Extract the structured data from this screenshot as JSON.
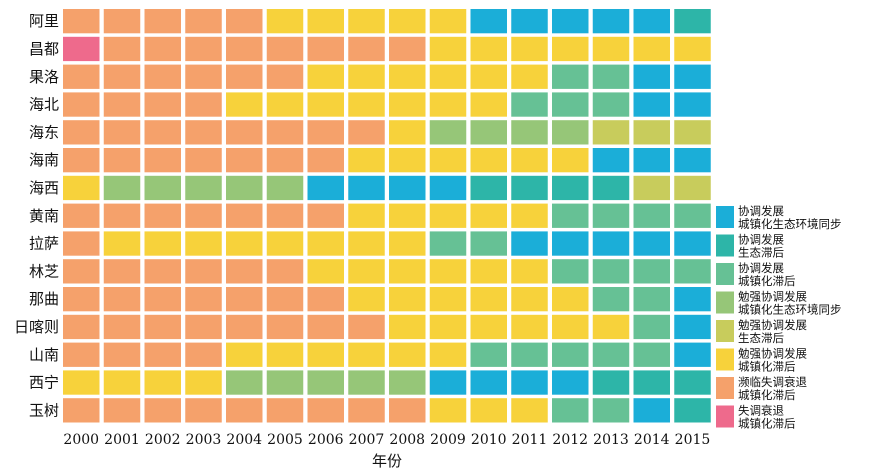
{
  "chart_data": {
    "type": "heatmap",
    "title": "",
    "xlabel": "年份",
    "ylabel": "",
    "x": [
      "2000",
      "2001",
      "2002",
      "2003",
      "2004",
      "2005",
      "2006",
      "2007",
      "2008",
      "2009",
      "2010",
      "2011",
      "2012",
      "2013",
      "2014",
      "2015"
    ],
    "y": [
      "阿里",
      "昌都",
      "果洛",
      "海北",
      "海东",
      "海南",
      "海西",
      "黄南",
      "拉萨",
      "林芝",
      "那曲",
      "日喀则",
      "山南",
      "西宁",
      "玉树"
    ],
    "legend_position": "right",
    "categories": [
      {
        "id": "A",
        "label_line1": "协调发展",
        "label_line2": "城镇化生态环境同步",
        "color": "#1BAED8"
      },
      {
        "id": "B",
        "label_line1": "协调发展",
        "label_line2": "生态滞后",
        "color": "#2DB5A8"
      },
      {
        "id": "C",
        "label_line1": "协调发展",
        "label_line2": "城镇化滞后",
        "color": "#66C195"
      },
      {
        "id": "D",
        "label_line1": "勉强协调发展",
        "label_line2": "城镇化生态环境同步",
        "color": "#96C678"
      },
      {
        "id": "E",
        "label_line1": "勉强协调发展",
        "label_line2": "生态滞后",
        "color": "#C8CC5C"
      },
      {
        "id": "F",
        "label_line1": "勉强协调发展",
        "label_line2": "城镇化滞后",
        "color": "#F7D23B"
      },
      {
        "id": "G",
        "label_line1": "濒临失调衰退",
        "label_line2": "城镇化滞后",
        "color": "#F5A16B"
      },
      {
        "id": "H",
        "label_line1": "失调衰退",
        "label_line2": "城镇化滞后",
        "color": "#EE6A8C"
      }
    ],
    "rows": {
      "阿里": [
        "G",
        "G",
        "G",
        "G",
        "G",
        "F",
        "F",
        "F",
        "F",
        "F",
        "A",
        "A",
        "A",
        "A",
        "A",
        "B"
      ],
      "昌都": [
        "H",
        "G",
        "G",
        "G",
        "G",
        "G",
        "G",
        "G",
        "G",
        "F",
        "F",
        "F",
        "F",
        "F",
        "F",
        "F"
      ],
      "果洛": [
        "G",
        "G",
        "G",
        "G",
        "G",
        "G",
        "F",
        "F",
        "F",
        "F",
        "F",
        "F",
        "C",
        "C",
        "A",
        "A"
      ],
      "海北": [
        "G",
        "G",
        "G",
        "G",
        "F",
        "F",
        "F",
        "F",
        "F",
        "F",
        "F",
        "C",
        "C",
        "C",
        "A",
        "A"
      ],
      "海东": [
        "G",
        "G",
        "G",
        "G",
        "G",
        "G",
        "G",
        "G",
        "F",
        "D",
        "D",
        "D",
        "D",
        "E",
        "E",
        "E"
      ],
      "海南": [
        "G",
        "G",
        "G",
        "G",
        "G",
        "G",
        "G",
        "F",
        "F",
        "F",
        "F",
        "F",
        "F",
        "A",
        "A",
        "A"
      ],
      "海西": [
        "F",
        "D",
        "D",
        "D",
        "D",
        "D",
        "A",
        "A",
        "A",
        "A",
        "B",
        "B",
        "B",
        "B",
        "E",
        "E"
      ],
      "黄南": [
        "G",
        "G",
        "G",
        "G",
        "G",
        "G",
        "G",
        "F",
        "F",
        "F",
        "F",
        "F",
        "C",
        "C",
        "C",
        "C"
      ],
      "拉萨": [
        "G",
        "F",
        "F",
        "F",
        "F",
        "F",
        "F",
        "F",
        "F",
        "C",
        "C",
        "A",
        "A",
        "A",
        "A",
        "A"
      ],
      "林芝": [
        "G",
        "G",
        "G",
        "G",
        "G",
        "G",
        "F",
        "F",
        "F",
        "F",
        "F",
        "F",
        "C",
        "C",
        "C",
        "C"
      ],
      "那曲": [
        "G",
        "G",
        "G",
        "G",
        "G",
        "G",
        "G",
        "F",
        "F",
        "F",
        "F",
        "F",
        "F",
        "C",
        "C",
        "A"
      ],
      "日喀则": [
        "G",
        "G",
        "G",
        "G",
        "G",
        "G",
        "G",
        "G",
        "F",
        "F",
        "F",
        "F",
        "F",
        "F",
        "C",
        "A"
      ],
      "山南": [
        "G",
        "G",
        "G",
        "G",
        "F",
        "F",
        "F",
        "F",
        "F",
        "F",
        "C",
        "C",
        "C",
        "C",
        "C",
        "A"
      ],
      "西宁": [
        "F",
        "F",
        "F",
        "F",
        "D",
        "D",
        "D",
        "D",
        "D",
        "A",
        "A",
        "A",
        "A",
        "B",
        "B",
        "B"
      ],
      "玉树": [
        "G",
        "G",
        "G",
        "G",
        "G",
        "G",
        "G",
        "G",
        "G",
        "F",
        "F",
        "F",
        "C",
        "C",
        "A",
        "B"
      ]
    }
  }
}
